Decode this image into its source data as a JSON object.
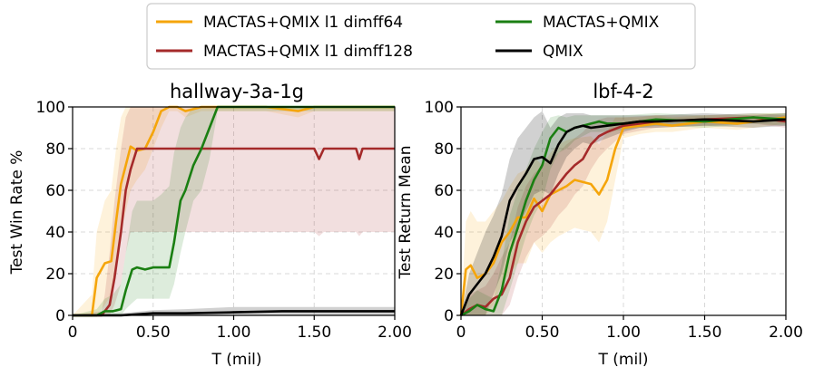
{
  "colors": {
    "series": [
      "#f5a50b",
      "#a52a2a",
      "#1a7f12",
      "#000000"
    ]
  },
  "chart_data": [
    {
      "type": "line",
      "title": "hallway-3a-1g",
      "xlabel": "T (mil)",
      "ylabel": "Test Win Rate %",
      "xlim": [
        0,
        2.0
      ],
      "ylim": [
        0,
        100
      ],
      "xticks": [
        0,
        0.5,
        1.0,
        1.5,
        2.0
      ],
      "xtick_labels": [
        "0",
        "0.50",
        "1.00",
        "1.50",
        "2.00"
      ],
      "yticks": [
        0,
        20,
        40,
        60,
        80,
        100
      ],
      "ytick_labels": [
        "0",
        "20",
        "40",
        "60",
        "80",
        "100"
      ],
      "grid": true,
      "series": [
        {
          "name": "MACTAS+QMIX l1 dimff64",
          "x": [
            0,
            0.12,
            0.15,
            0.2,
            0.24,
            0.27,
            0.3,
            0.33,
            0.36,
            0.4,
            0.45,
            0.5,
            0.55,
            0.6,
            0.65,
            0.7,
            0.8,
            0.85,
            0.9,
            1.0,
            1.2,
            1.4,
            1.5,
            1.7,
            2.0
          ],
          "y": [
            0,
            0,
            18,
            25,
            26,
            45,
            63,
            72,
            81,
            79,
            80,
            88,
            98,
            100,
            100,
            98,
            100,
            100,
            100,
            100,
            100,
            98,
            100,
            100,
            100
          ],
          "lower": [
            0,
            0,
            0,
            5,
            10,
            20,
            40,
            50,
            60,
            65,
            70,
            80,
            90,
            98,
            98,
            95,
            98,
            98,
            98,
            98,
            98,
            95,
            98,
            98,
            98
          ],
          "upper": [
            0,
            10,
            40,
            55,
            60,
            80,
            95,
            100,
            100,
            100,
            100,
            100,
            100,
            100,
            100,
            100,
            100,
            100,
            100,
            100,
            100,
            100,
            100,
            100,
            100
          ]
        },
        {
          "name": "MACTAS+QMIX l1 dimff128",
          "x": [
            0,
            0.18,
            0.2,
            0.23,
            0.26,
            0.3,
            0.33,
            0.36,
            0.4,
            0.5,
            0.6,
            0.8,
            1.0,
            1.3,
            1.5,
            1.53,
            1.56,
            1.7,
            1.76,
            1.78,
            1.8,
            2.0
          ],
          "y": [
            0,
            0,
            2,
            5,
            18,
            40,
            60,
            70,
            80,
            80,
            80,
            80,
            80,
            80,
            80,
            75,
            80,
            80,
            80,
            75,
            80,
            80
          ],
          "lower": [
            0,
            0,
            0,
            0,
            5,
            15,
            30,
            40,
            40,
            40,
            40,
            40,
            40,
            40,
            40,
            38,
            40,
            40,
            40,
            38,
            40,
            40
          ],
          "upper": [
            0,
            2,
            10,
            30,
            55,
            80,
            95,
            100,
            100,
            100,
            100,
            100,
            100,
            100,
            100,
            100,
            100,
            100,
            100,
            100,
            100,
            100
          ]
        },
        {
          "name": "MACTAS+QMIX",
          "x": [
            0,
            0.15,
            0.2,
            0.25,
            0.3,
            0.33,
            0.37,
            0.4,
            0.45,
            0.5,
            0.55,
            0.6,
            0.63,
            0.67,
            0.7,
            0.75,
            0.8,
            0.85,
            0.9,
            1.0,
            1.5,
            2.0
          ],
          "y": [
            0,
            0,
            2,
            2,
            3,
            12,
            22,
            23,
            22,
            23,
            23,
            23,
            35,
            55,
            60,
            72,
            80,
            90,
            100,
            100,
            100,
            100
          ],
          "lower": [
            0,
            0,
            0,
            0,
            0,
            3,
            6,
            8,
            8,
            8,
            8,
            8,
            15,
            30,
            40,
            55,
            60,
            75,
            98,
            98,
            98,
            98
          ],
          "upper": [
            0,
            3,
            8,
            10,
            15,
            30,
            50,
            55,
            55,
            55,
            58,
            62,
            78,
            90,
            95,
            100,
            100,
            100,
            100,
            100,
            100,
            100
          ]
        },
        {
          "name": "QMIX",
          "x": [
            0,
            0.3,
            0.5,
            0.7,
            1.0,
            1.3,
            1.6,
            2.0
          ],
          "y": [
            0,
            0,
            1,
            1,
            1.5,
            2,
            2,
            2
          ],
          "lower": [
            0,
            0,
            0,
            0,
            0,
            0,
            0,
            0
          ],
          "upper": [
            0,
            1,
            2.5,
            3,
            4,
            4,
            4,
            4
          ]
        }
      ]
    },
    {
      "type": "line",
      "title": "lbf-4-2",
      "xlabel": "T (mil)",
      "ylabel": "Test Return Mean",
      "xlim": [
        0,
        2.0
      ],
      "ylim": [
        0,
        100
      ],
      "xticks": [
        0,
        0.5,
        1.0,
        1.5,
        2.0
      ],
      "xtick_labels": [
        "0",
        "0.50",
        "1.00",
        "1.50",
        "2.00"
      ],
      "yticks": [
        0,
        20,
        40,
        60,
        80,
        100
      ],
      "ytick_labels": [
        "0",
        "20",
        "40",
        "60",
        "80",
        "100"
      ],
      "grid": true,
      "series": [
        {
          "name": "MACTAS+QMIX l1 dimff64",
          "x": [
            0,
            0.03,
            0.06,
            0.1,
            0.15,
            0.2,
            0.25,
            0.3,
            0.35,
            0.4,
            0.45,
            0.5,
            0.55,
            0.6,
            0.65,
            0.7,
            0.8,
            0.85,
            0.9,
            0.95,
            1.0,
            1.1,
            1.2,
            1.3,
            1.5,
            1.7,
            1.9,
            2.0
          ],
          "y": [
            0,
            22,
            24,
            18,
            20,
            25,
            35,
            40,
            47,
            47,
            56,
            50,
            58,
            60,
            62,
            65,
            63,
            58,
            65,
            80,
            90,
            91,
            92,
            91,
            93,
            92,
            94,
            95
          ],
          "lower": [
            0,
            0,
            0,
            0,
            0,
            5,
            15,
            20,
            25,
            25,
            35,
            30,
            35,
            38,
            40,
            42,
            40,
            35,
            45,
            65,
            85,
            87,
            88,
            88,
            90,
            89,
            91,
            92
          ],
          "upper": [
            0,
            45,
            50,
            45,
            45,
            50,
            55,
            62,
            68,
            70,
            76,
            72,
            78,
            82,
            84,
            85,
            86,
            82,
            88,
            95,
            95,
            95,
            96,
            95,
            96,
            96,
            97,
            97
          ]
        },
        {
          "name": "MACTAS+QMIX l1 dimff128",
          "x": [
            0,
            0.05,
            0.1,
            0.15,
            0.2,
            0.25,
            0.3,
            0.35,
            0.4,
            0.45,
            0.5,
            0.55,
            0.6,
            0.65,
            0.7,
            0.75,
            0.8,
            0.85,
            0.9,
            1.0,
            1.2,
            1.5,
            1.8,
            2.0
          ],
          "y": [
            0,
            3,
            5,
            4,
            8,
            10,
            18,
            35,
            45,
            52,
            55,
            58,
            63,
            68,
            72,
            75,
            82,
            86,
            88,
            91,
            93,
            94,
            95,
            93
          ],
          "lower": [
            0,
            0,
            0,
            0,
            0,
            0,
            5,
            18,
            28,
            35,
            38,
            42,
            48,
            52,
            58,
            62,
            70,
            76,
            80,
            87,
            90,
            91,
            92,
            90
          ],
          "upper": [
            0,
            10,
            12,
            14,
            20,
            28,
            35,
            52,
            62,
            68,
            72,
            75,
            78,
            82,
            85,
            88,
            92,
            94,
            95,
            95,
            96,
            96,
            97,
            96
          ]
        },
        {
          "name": "MACTAS+QMIX",
          "x": [
            0,
            0.05,
            0.1,
            0.15,
            0.2,
            0.25,
            0.3,
            0.35,
            0.4,
            0.45,
            0.5,
            0.55,
            0.6,
            0.65,
            0.7,
            0.75,
            0.8,
            0.85,
            0.9,
            1.0,
            1.2,
            1.5,
            1.8,
            2.0
          ],
          "y": [
            0,
            2,
            5,
            3,
            2,
            12,
            30,
            42,
            55,
            65,
            72,
            85,
            90,
            88,
            90,
            91,
            92,
            93,
            92,
            92,
            94,
            93,
            95,
            94
          ],
          "lower": [
            0,
            0,
            0,
            0,
            0,
            0,
            12,
            25,
            38,
            48,
            55,
            70,
            78,
            80,
            84,
            86,
            88,
            88,
            88,
            89,
            91,
            90,
            92,
            91
          ],
          "upper": [
            0,
            8,
            12,
            10,
            8,
            25,
            48,
            60,
            70,
            80,
            88,
            95,
            96,
            95,
            96,
            96,
            96,
            96,
            96,
            96,
            97,
            96,
            97,
            97
          ]
        },
        {
          "name": "QMIX",
          "x": [
            0,
            0.05,
            0.1,
            0.15,
            0.2,
            0.25,
            0.3,
            0.35,
            0.4,
            0.45,
            0.5,
            0.55,
            0.6,
            0.65,
            0.7,
            0.75,
            0.8,
            0.9,
            1.0,
            1.1,
            1.2,
            1.5,
            1.8,
            2.0
          ],
          "y": [
            0,
            10,
            15,
            20,
            28,
            38,
            55,
            62,
            68,
            75,
            76,
            73,
            82,
            88,
            90,
            91,
            90,
            91,
            92,
            93,
            93,
            94,
            93,
            94
          ],
          "lower": [
            0,
            0,
            0,
            0,
            10,
            20,
            35,
            42,
            50,
            58,
            60,
            58,
            68,
            76,
            80,
            83,
            82,
            85,
            88,
            90,
            90,
            91,
            90,
            91
          ],
          "upper": [
            0,
            20,
            30,
            40,
            48,
            58,
            75,
            85,
            90,
            95,
            98,
            90,
            95,
            97,
            97,
            97,
            96,
            96,
            96,
            96,
            96,
            97,
            96,
            97
          ]
        }
      ]
    }
  ],
  "legend": {
    "placement": "top-center",
    "entries": [
      "MACTAS+QMIX l1 dimff64",
      "MACTAS+QMIX l1 dimff128",
      "MACTAS+QMIX",
      "QMIX"
    ]
  }
}
